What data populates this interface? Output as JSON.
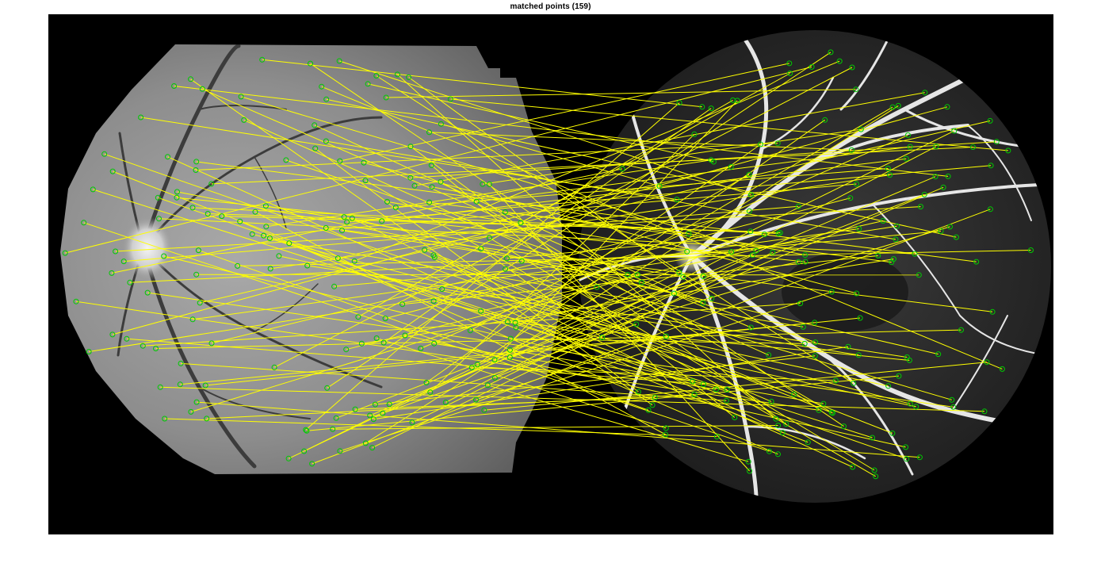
{
  "figure": {
    "title": "matched points (159)"
  },
  "image": {
    "description_left_panel": "grayscale fundus photograph",
    "description_right_panel": "fluorescein angiogram",
    "background_color": "#000000",
    "left_fundus_color": "#8e8e8e",
    "right_fundus_color": "#2a2a2a",
    "vessel_color_left": "#3a3a3a",
    "vessel_color_right": "#e8e8e8"
  },
  "matches": {
    "count": 159,
    "line_color": "#ffff00",
    "point_color": "#00cc00",
    "marker_shape": "circle"
  }
}
